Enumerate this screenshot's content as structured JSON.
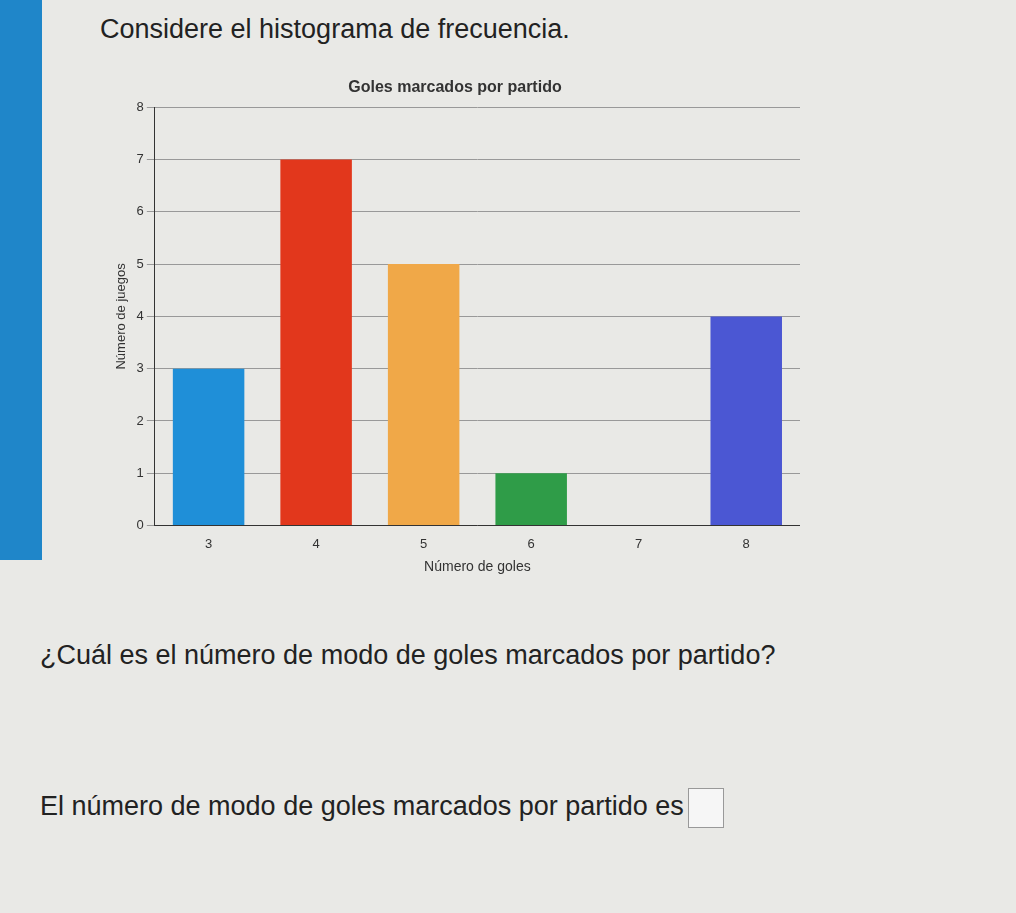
{
  "page": {
    "intro": "Considere el histograma de frecuencia.",
    "question": "¿Cuál es el número de modo de goles marcados por partido?",
    "answer": "El número de modo de goles marcados por partido es"
  },
  "chart_data": {
    "type": "bar",
    "title": "Goles marcados por partido",
    "x_label": "Número de goles",
    "y_label": "Número de juegos",
    "categories": [
      "3",
      "4",
      "5",
      "6",
      "7",
      "8"
    ],
    "values": [
      3,
      7,
      5,
      1,
      0,
      4
    ],
    "colors": [
      "#1f8fd8",
      "#e2371c",
      "#f0a848",
      "#2f9c48",
      "#888888",
      "#4b57d3"
    ],
    "ylim": [
      0,
      8
    ],
    "yticks": [
      0,
      1,
      2,
      3,
      4,
      5,
      6,
      7,
      8
    ],
    "grid": true
  }
}
